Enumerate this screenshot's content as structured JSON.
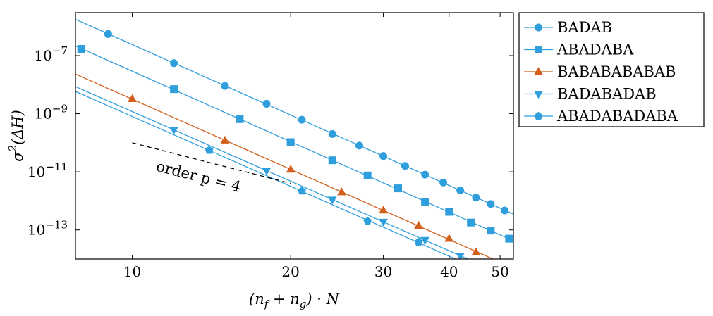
{
  "chart_data": {
    "type": "line",
    "xlabel": "(n_f + n_g) · N",
    "ylabel": "σ²(ΔH)",
    "xscale": "log",
    "yscale": "log",
    "xlim": [
      7.8,
      53
    ],
    "ylim": [
      1e-14,
      3e-06
    ],
    "xticks": [
      {
        "value": 10,
        "label": "10"
      },
      {
        "value": 20,
        "label": "20"
      },
      {
        "value": 30,
        "label": "30"
      },
      {
        "value": 40,
        "label": "40"
      },
      {
        "value": 50,
        "label": "50"
      }
    ],
    "yticks": [
      {
        "value": 1e-07,
        "base": "10",
        "exp": "−7"
      },
      {
        "value": 1e-09,
        "base": "10",
        "exp": "−9"
      },
      {
        "value": 1e-11,
        "base": "10",
        "exp": "−11"
      },
      {
        "value": 1e-13,
        "base": "10",
        "exp": "−13"
      }
    ],
    "legend_position": "outside-right-top",
    "grid": false,
    "series": [
      {
        "name": "BADAB",
        "color": "#2e9fdc",
        "marker": "circle",
        "x": [
          9,
          12,
          15,
          18,
          21,
          24,
          27,
          30,
          33,
          36,
          39,
          42,
          45,
          48,
          51,
          54
        ],
        "y": [
          5.5e-07,
          5.5e-08,
          9e-09,
          2.2e-09,
          6.2e-10,
          2e-10,
          8e-11,
          3.5e-11,
          1.6e-11,
          8e-12,
          4.3e-12,
          2.3e-12,
          1.3e-12,
          7.8e-13,
          4.7e-13,
          3e-13
        ]
      },
      {
        "name": "ABADABA",
        "color": "#2e9fdc",
        "marker": "square",
        "x": [
          8,
          12,
          16,
          20,
          24,
          28,
          32,
          36,
          40,
          44,
          48,
          52
        ],
        "y": [
          1.7e-07,
          7e-09,
          6.5e-10,
          1.05e-10,
          2.5e-11,
          7.5e-12,
          2.7e-12,
          9e-13,
          4.2e-13,
          1.8e-13,
          9.5e-14,
          5e-14
        ]
      },
      {
        "name": "BABABABABAB",
        "color": "#d35f1c",
        "marker": "triangle-up",
        "x": [
          10,
          15,
          20,
          25,
          30,
          35,
          40,
          45
        ],
        "y": [
          3.2e-09,
          1.2e-10,
          1.2e-11,
          2e-12,
          4.7e-13,
          1.4e-13,
          5e-14,
          1.7e-14
        ]
      },
      {
        "name": "BADABADAB",
        "color": "#2e9fdc",
        "marker": "triangle-down",
        "x": [
          12,
          18,
          24,
          30,
          36,
          42
        ],
        "y": [
          2.8e-10,
          1.1e-11,
          1.1e-12,
          1.9e-13,
          4.5e-14,
          1.3e-14
        ]
      },
      {
        "name": "ABADABADABA",
        "color": "#2e9fdc",
        "marker": "pentagon",
        "x": [
          14,
          21,
          28,
          35
        ],
        "y": [
          5.5e-11,
          2.2e-12,
          2e-13,
          3.8e-14
        ]
      }
    ],
    "annotations": [
      {
        "text": "order p = 4",
        "style": "dashed",
        "slope_line": {
          "x": [
            10,
            20
          ],
          "y": [
            1e-10,
            4e-12
          ]
        }
      }
    ]
  }
}
